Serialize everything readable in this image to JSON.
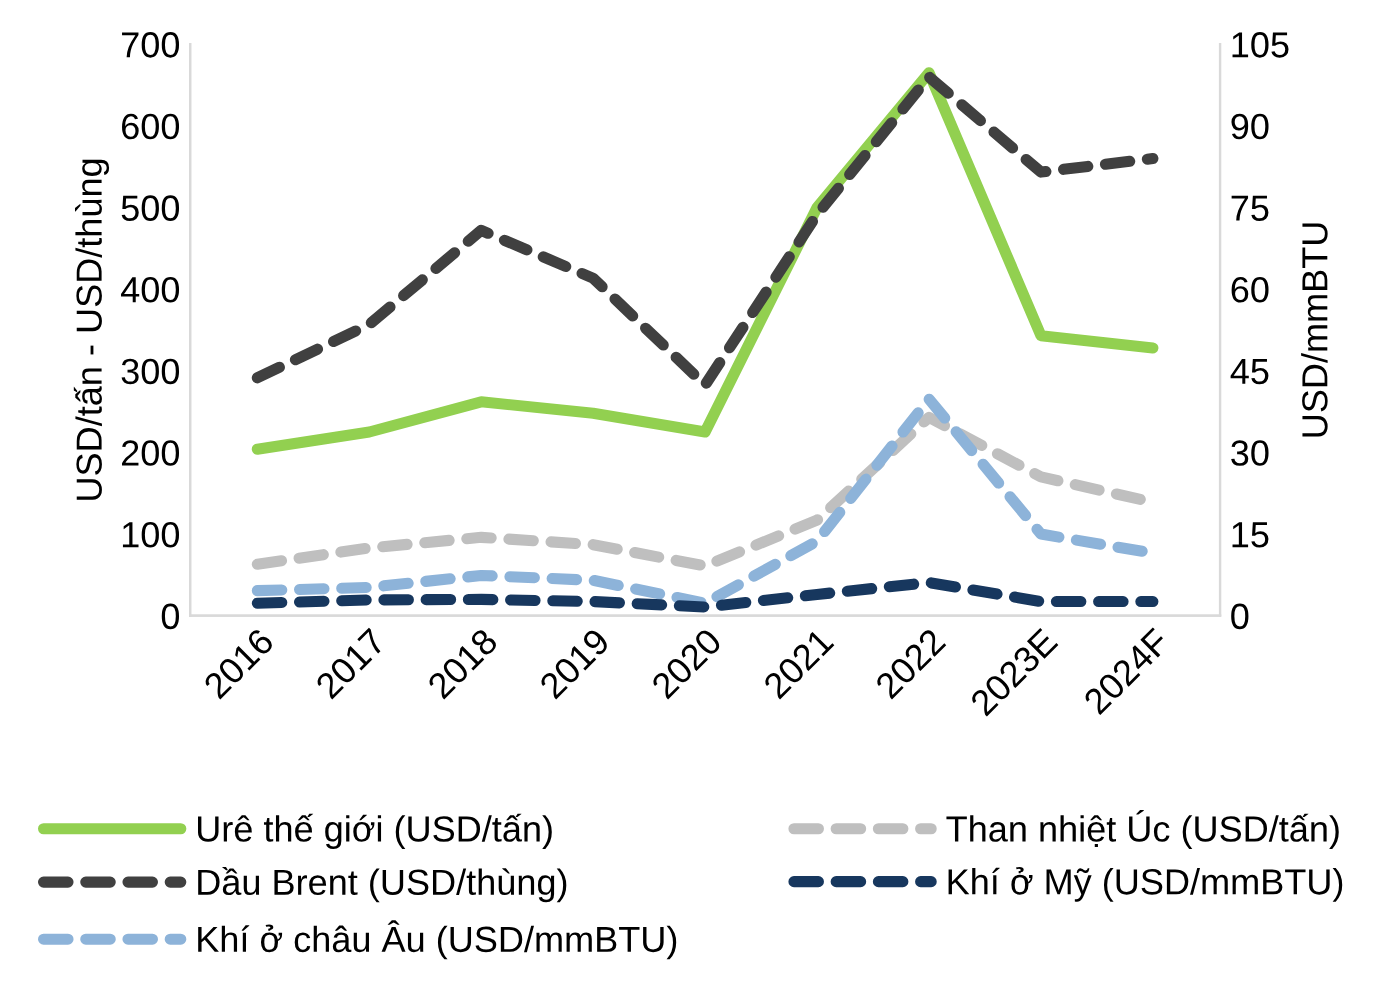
{
  "chart_data": {
    "type": "line",
    "ylabel": "USD/tấn - USD/thùng",
    "y2label": "USD/mmBTU",
    "categories": [
      "2016",
      "2017",
      "2018",
      "2019",
      "2020",
      "2021",
      "2022",
      "2023E",
      "2024F"
    ],
    "series": [
      {
        "name": "Urê thế giới (USD/tấn)",
        "color": "#92d050",
        "line_style": "solid",
        "values": [
          204,
          225,
          262,
          248,
          225,
          500,
          665,
          343,
          328
        ]
      },
      {
        "name": "Dầu Brent (USD/thùng)",
        "color": "#404040",
        "line_style": "dashed",
        "axis": "y2",
        "values": [
          43.7,
          53.5,
          70.8,
          62,
          42.4,
          73.7,
          99,
          81.5,
          84
        ]
      },
      {
        "name": "Khí ở châu Âu (USD/mmBTU)",
        "color": "#8db3d9",
        "line_style": "dashed",
        "axis": "y2",
        "values": [
          4.6,
          5.2,
          7.4,
          6.5,
          2.3,
          13.7,
          39.8,
          15,
          11.5
        ]
      },
      {
        "name": "Than nhiệt Úc (USD/tấn)",
        "color": "#bfbfbf",
        "line_style": "dashed",
        "values": [
          63,
          83,
          96,
          87,
          61,
          117,
          243,
          170,
          139
        ]
      },
      {
        "name": "Khí ở Mỹ (USD/mmBTU)",
        "color": "#17375e",
        "line_style": "dashed",
        "axis": "y2",
        "values": [
          2.3,
          2.9,
          3,
          2.6,
          1.6,
          3.9,
          6.1,
          2.6,
          2.6
        ]
      }
    ],
    "ylim": [
      0,
      700
    ],
    "yticks": [
      0,
      100,
      200,
      300,
      400,
      500,
      600,
      700
    ],
    "y2lim": [
      0,
      105
    ],
    "y2ticks": [
      0,
      15,
      30,
      45,
      60,
      75,
      90,
      105
    ],
    "grid": false,
    "legend": "bottom",
    "marker": "none"
  }
}
